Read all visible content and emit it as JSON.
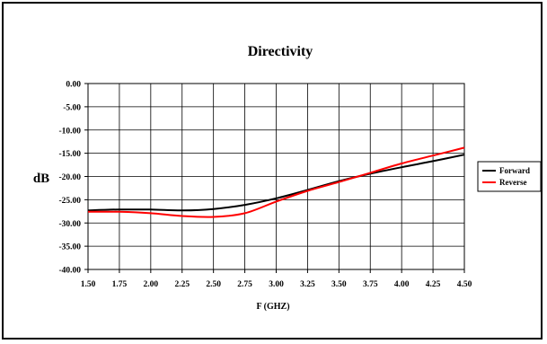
{
  "chart_data": {
    "type": "line",
    "title": "Directivity",
    "xlabel": "F (GHZ)",
    "ylabel": "dB",
    "xlim": [
      1.5,
      4.5
    ],
    "ylim": [
      -40,
      0
    ],
    "x_ticks": [
      "1.50",
      "1.75",
      "2.00",
      "2.25",
      "2.50",
      "2.75",
      "3.00",
      "3.25",
      "3.50",
      "3.75",
      "4.00",
      "4.25",
      "4.50"
    ],
    "y_ticks": [
      "0.00",
      "-5.00",
      "-10.00",
      "-15.00",
      "-20.00",
      "-25.00",
      "-30.00",
      "-35.00",
      "-40.00"
    ],
    "grid": true,
    "legend_position": "right",
    "x": [
      1.5,
      1.75,
      2.0,
      2.25,
      2.5,
      2.75,
      3.0,
      3.25,
      3.5,
      3.75,
      4.0,
      4.25,
      4.5
    ],
    "series": [
      {
        "name": "Forward",
        "color": "#000000",
        "values": [
          -27.3,
          -27.1,
          -27.1,
          -27.3,
          -27.0,
          -26.1,
          -24.7,
          -22.9,
          -21.0,
          -19.4,
          -18.0,
          -16.7,
          -15.3
        ]
      },
      {
        "name": "Reverse",
        "color": "#ff0000",
        "values": [
          -27.6,
          -27.6,
          -27.9,
          -28.5,
          -28.7,
          -27.9,
          -25.4,
          -23.1,
          -21.2,
          -19.2,
          -17.2,
          -15.5,
          -13.8
        ]
      }
    ]
  }
}
